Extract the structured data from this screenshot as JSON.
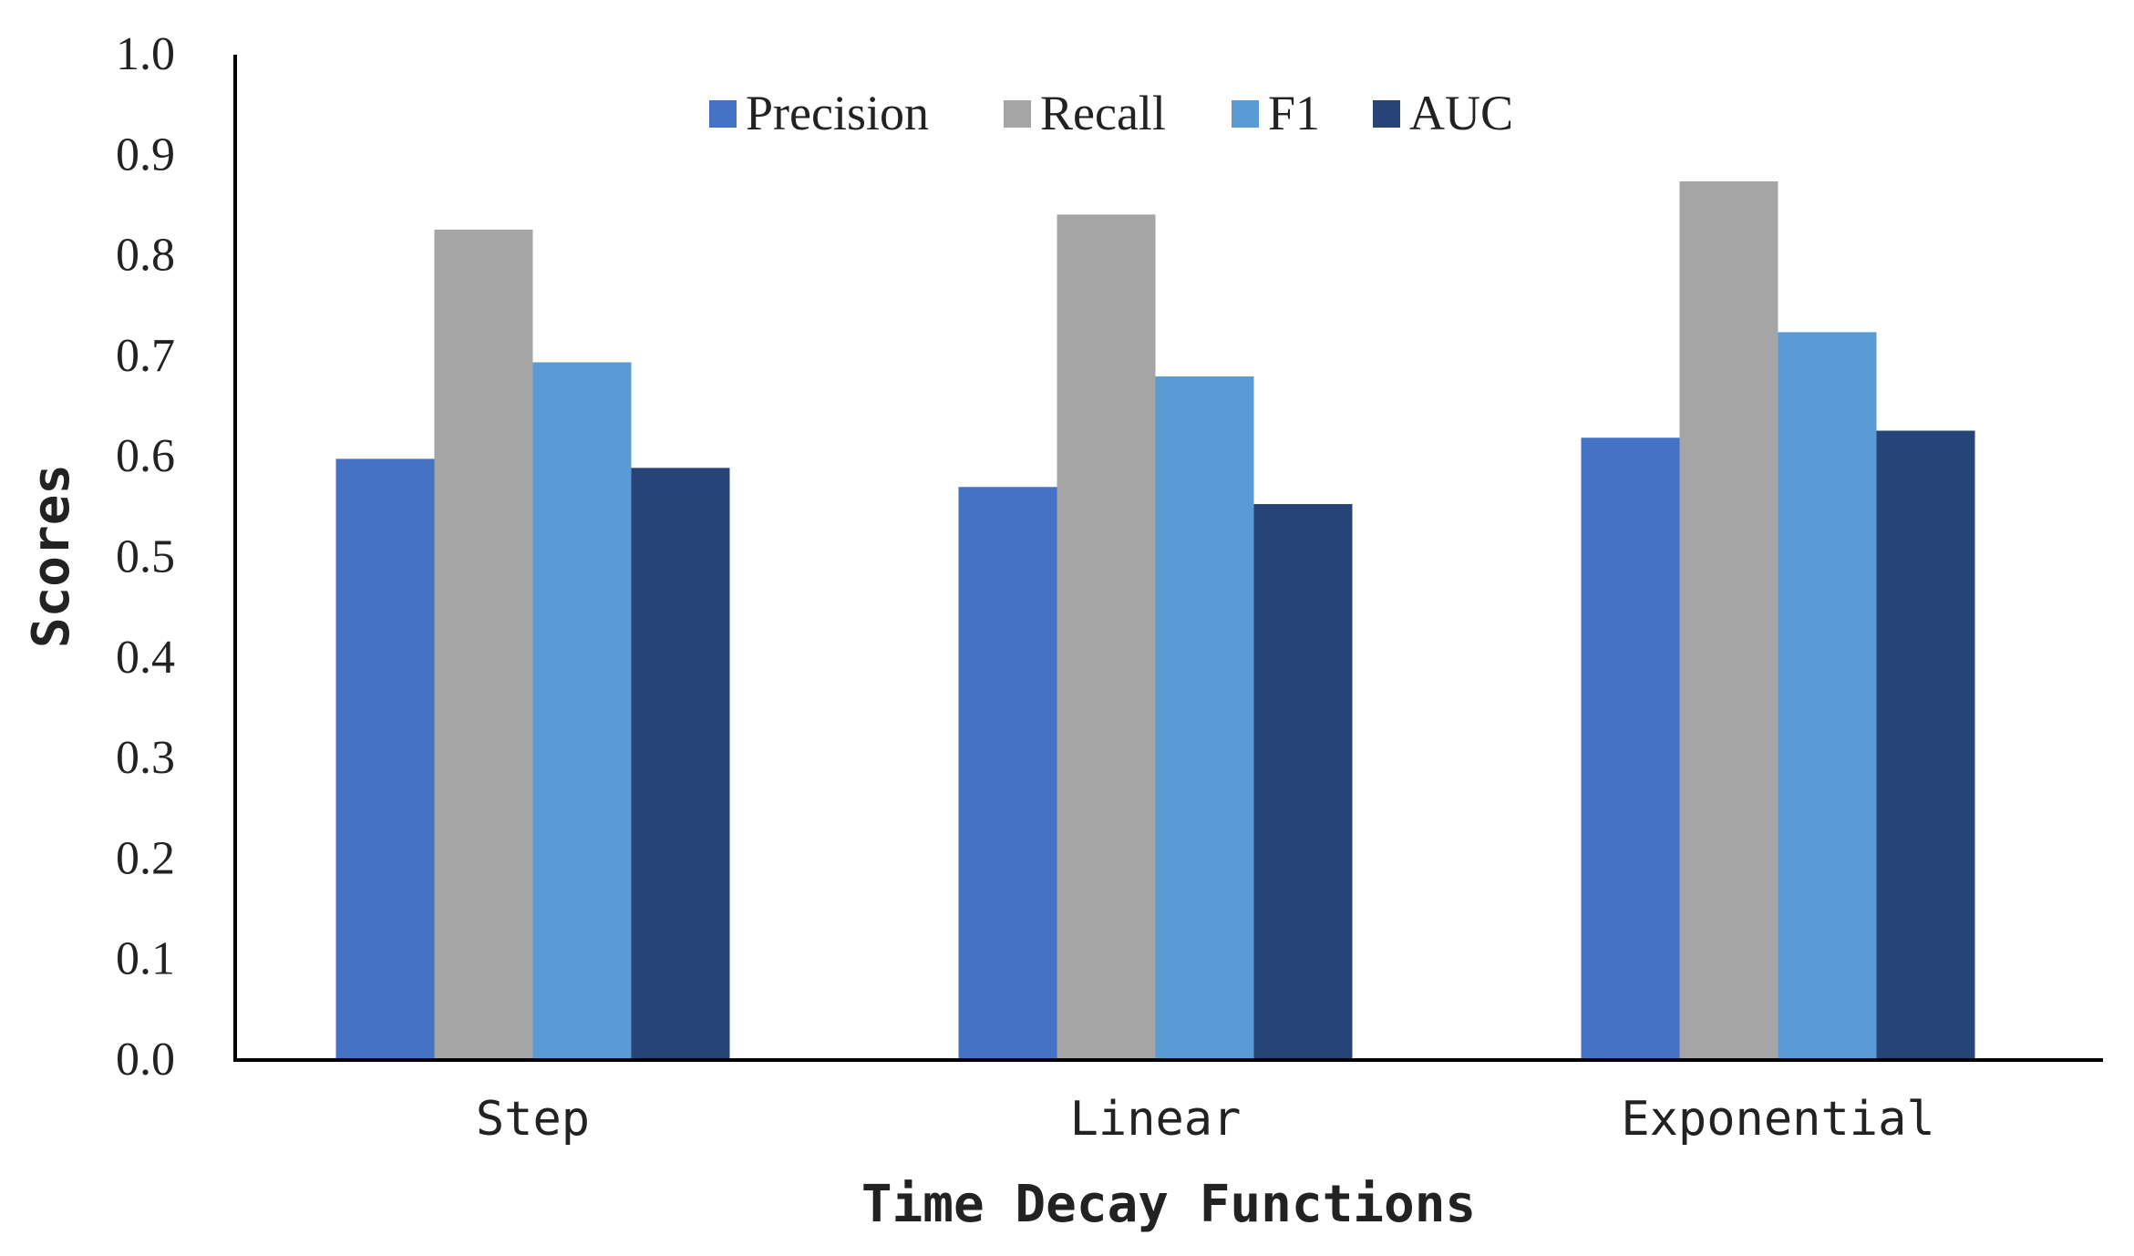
{
  "chart_data": {
    "type": "bar",
    "title": "",
    "xlabel": "Time Decay Functions",
    "ylabel": "Scores",
    "categories": [
      "Step",
      "Linear",
      "Exponential"
    ],
    "ylim": [
      0,
      1.0
    ],
    "yticks": [
      "0.0",
      "0.1",
      "0.2",
      "0.3",
      "0.4",
      "0.5",
      "0.6",
      "0.7",
      "0.8",
      "0.9",
      "1.0"
    ],
    "grid": false,
    "legend_position": "top-center",
    "series": [
      {
        "name": "Precision",
        "color": "#4472C4",
        "values": [
          0.598,
          0.57,
          0.619
        ]
      },
      {
        "name": "Recall",
        "color": "#A5A5A5",
        "values": [
          0.826,
          0.841,
          0.874
        ]
      },
      {
        "name": "F1",
        "color": "#5B9BD5",
        "values": [
          0.694,
          0.68,
          0.724
        ]
      },
      {
        "name": "AUC",
        "color": "#264478",
        "values": [
          0.589,
          0.553,
          0.626
        ]
      }
    ]
  }
}
